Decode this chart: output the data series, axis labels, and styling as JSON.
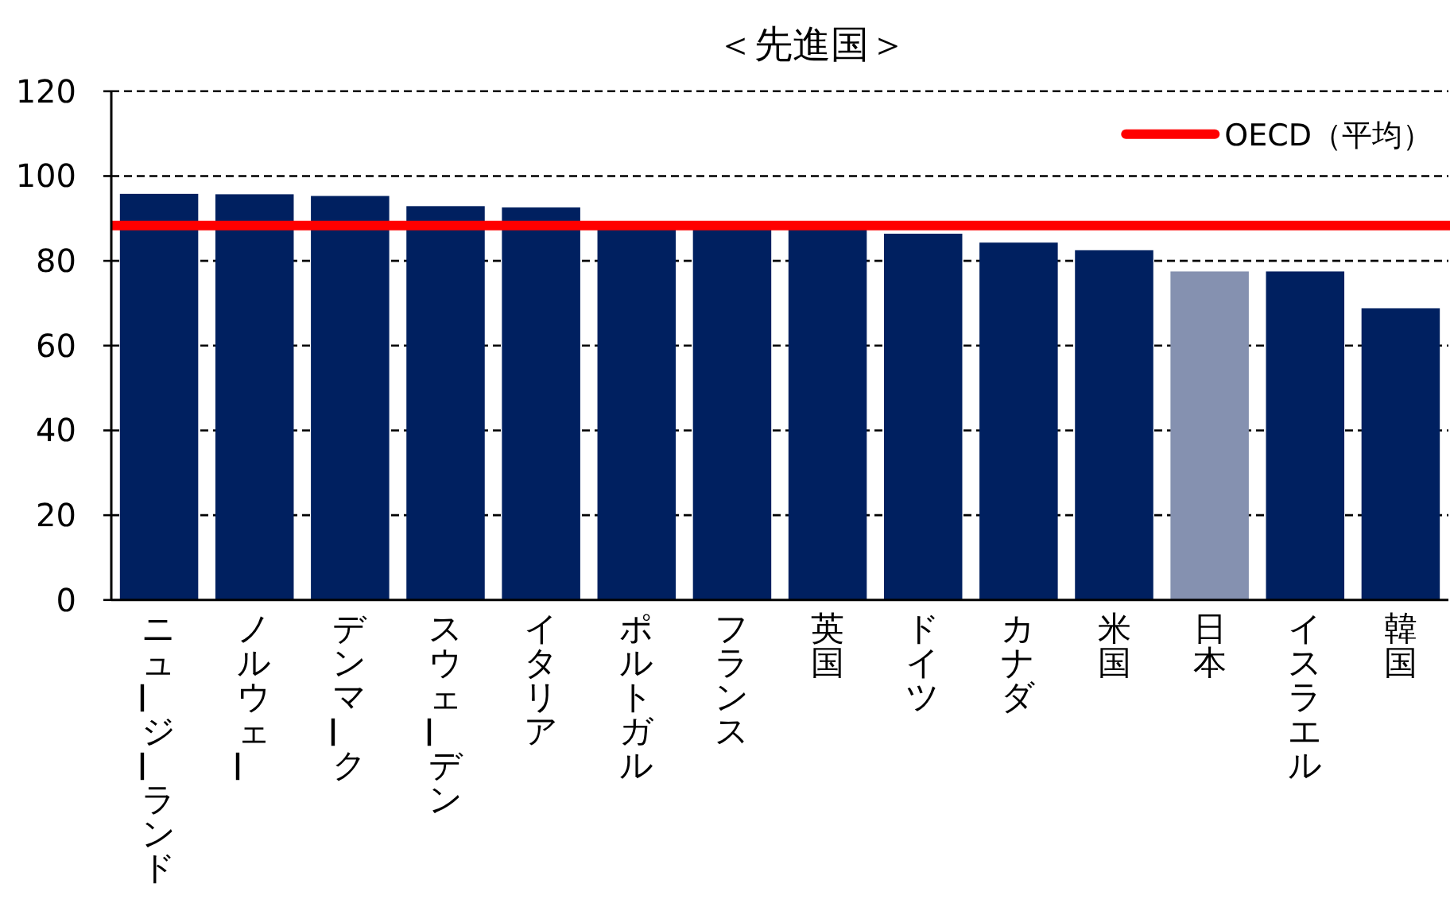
{
  "chart_data": {
    "type": "bar",
    "title": "＜先進国＞",
    "categories": [
      "ニュージーランド",
      "ノルウェー",
      "デンマーク",
      "スウェーデン",
      "イタリア",
      "ポルトガル",
      "フランス",
      "英国",
      "ドイツ",
      "カナダ",
      "米国",
      "日本",
      "イスラエル",
      "韓国"
    ],
    "values": [
      95.8,
      95.7,
      95.3,
      92.9,
      92.6,
      88,
      88,
      88,
      86.4,
      84.3,
      82.5,
      77.5,
      77.5,
      68.8
    ],
    "colors": [
      "#002060",
      "#002060",
      "#002060",
      "#002060",
      "#002060",
      "#002060",
      "#002060",
      "#002060",
      "#002060",
      "#002060",
      "#002060",
      "#8591b0",
      "#002060",
      "#002060"
    ],
    "ylim": [
      0,
      120
    ],
    "yticks": [
      0,
      20,
      40,
      60,
      80,
      100,
      120
    ],
    "grid": "y",
    "legend": "top right",
    "ref_lines": [
      {
        "axis": "y",
        "value": 88.3,
        "label": "OECD（平均）",
        "color": "#ff0000"
      }
    ]
  }
}
